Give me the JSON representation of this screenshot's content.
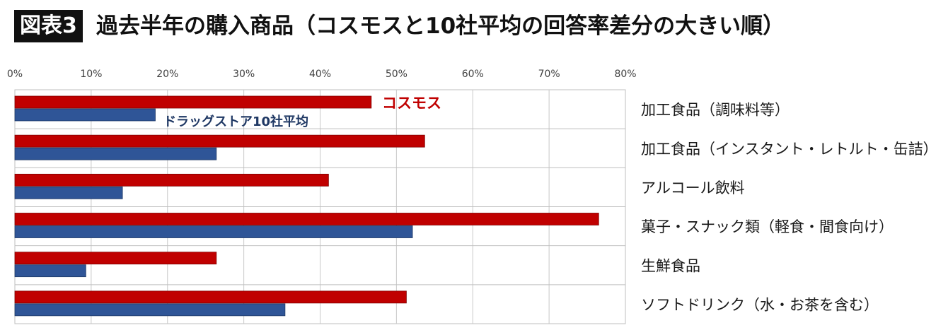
{
  "title": {
    "badge": "図表3",
    "text": "過去半年の購入商品（コスモスと10社平均の回答率差分の大きい順）"
  },
  "colors": {
    "cosmos": "#C00000",
    "average": "#2F5597",
    "grid": "#C8C8C8",
    "cosmos_label": "#C00000",
    "average_label": "#1F3864"
  },
  "chart_data": {
    "type": "bar",
    "orientation": "horizontal",
    "xlim": [
      0,
      80
    ],
    "xticks": [
      "0%",
      "10%",
      "20%",
      "30%",
      "40%",
      "50%",
      "60%",
      "70%",
      "80%"
    ],
    "categories": [
      "加工食品（調味料等）",
      "加工食品（インスタント・レトルト・缶詰）",
      "アルコール飲料",
      "菓子・スナック類（軽食・間食向け）",
      "生鮮食品",
      "ソフトドリンク（水・お茶を含む）"
    ],
    "series": [
      {
        "name": "コスモス",
        "values": [
          46.7,
          53.7,
          41.1,
          76.5,
          26.4,
          51.3
        ]
      },
      {
        "name": "ドラッグストア10社平均",
        "values": [
          18.4,
          26.4,
          14.1,
          52.1,
          9.3,
          35.4
        ]
      }
    ],
    "grid": true
  }
}
